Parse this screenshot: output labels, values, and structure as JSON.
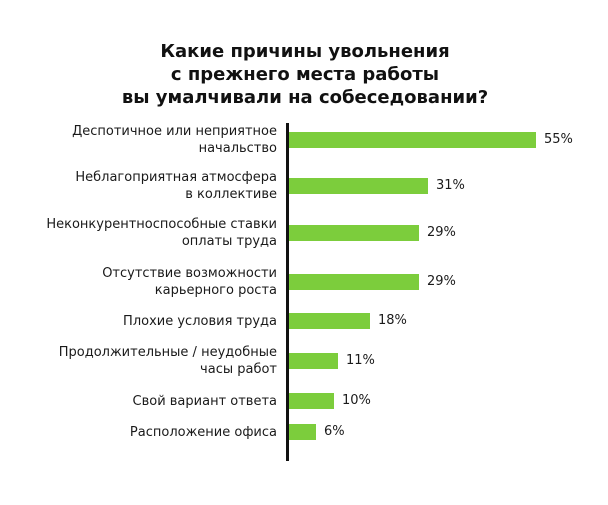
{
  "chart_data": {
    "type": "bar",
    "orientation": "horizontal",
    "title": "Какие причины увольнения с прежнего места работы вы умалчивали на собеседовании?",
    "title_lines": [
      "Какие причины увольнения",
      "с прежнего места работы",
      "вы умалчивали на собеседовании?"
    ],
    "categories": [
      "Деспотичное или неприятное начальство",
      "Неблагоприятная атмосфера в коллективе",
      "Неконкурентноспособные ставки оплаты труда",
      "Отсутствие возможности карьерного роста",
      "Плохие условия труда",
      "Продолжительные / неудобные часы работ",
      "Свой вариант ответа",
      "Расположение офиса"
    ],
    "category_lines": [
      [
        "Деспотичное или неприятное",
        "начальство"
      ],
      [
        "Неблагоприятная атмосфера",
        "в коллективе"
      ],
      [
        "Неконкурентноспособные ставки",
        "оплаты труда"
      ],
      [
        "Отсутствие возможности",
        "карьерного роста"
      ],
      [
        "Плохие условия труда"
      ],
      [
        "Продолжительные  / неудобные",
        "часы работ"
      ],
      [
        "Свой вариант ответа"
      ],
      [
        "Расположение офиса"
      ]
    ],
    "values": [
      55,
      31,
      29,
      29,
      18,
      11,
      10,
      6
    ],
    "value_labels": [
      "55%",
      "31%",
      "29%",
      "29%",
      "18%",
      "11%",
      "10%",
      "6%"
    ],
    "xlabel": "",
    "ylabel": "",
    "xlim": [
      0,
      55
    ],
    "grid": false,
    "legend": null,
    "bar_color": "#7ccd3c",
    "axis_color": "#111111"
  }
}
